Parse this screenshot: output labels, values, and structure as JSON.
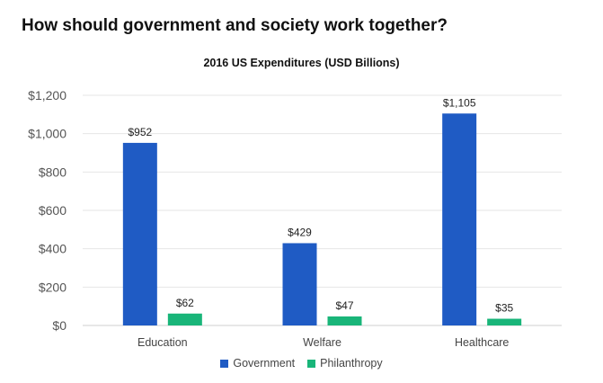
{
  "header": {
    "title": "How should government and society work together?"
  },
  "chart_data": {
    "type": "bar",
    "title": "2016 US Expenditures (USD Billions)",
    "categories": [
      "Education",
      "Welfare",
      "Healthcare"
    ],
    "series": [
      {
        "name": "Government",
        "values": [
          952,
          429,
          1105
        ],
        "labels": [
          "$952",
          "$429",
          "$1,105"
        ],
        "color": "#1f5bc4"
      },
      {
        "name": "Philanthropy",
        "values": [
          62,
          47,
          35
        ],
        "labels": [
          "$62",
          "$47",
          "$35"
        ],
        "color": "#19b579"
      }
    ],
    "ylim": [
      0,
      1200
    ],
    "yticks": [
      0,
      200,
      400,
      600,
      800,
      1000,
      1200
    ],
    "ytick_labels": [
      "$0",
      "$200",
      "$400",
      "$600",
      "$800",
      "$1,000",
      "$1,200"
    ],
    "grid": true,
    "legend_position": "bottom"
  }
}
